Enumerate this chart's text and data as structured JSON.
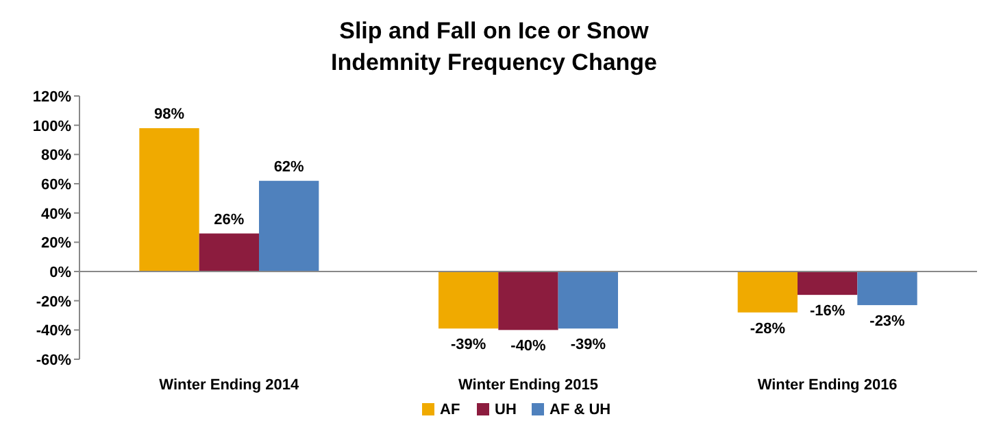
{
  "chart_data": {
    "type": "bar",
    "title": "Slip and Fall on Ice or Snow\nIndemnity Frequency Change",
    "categories": [
      "Winter Ending 2014",
      "Winter Ending 2015",
      "Winter Ending 2016"
    ],
    "series": [
      {
        "name": "AF",
        "color": "#f0aa00",
        "values": [
          98,
          -39,
          -28
        ],
        "value_labels": [
          "98%",
          "-39%",
          "-28%"
        ]
      },
      {
        "name": "UH",
        "color": "#8c1c3e",
        "values": [
          26,
          -40,
          -16
        ],
        "value_labels": [
          "26%",
          "-40%",
          "-16%"
        ]
      },
      {
        "name": "AF & UH",
        "color": "#4f81bd",
        "values": [
          62,
          -39,
          -23
        ],
        "value_labels": [
          "62%",
          "-39%",
          "-23%"
        ]
      }
    ],
    "ylim": [
      -60,
      120
    ],
    "yticks": [
      {
        "value": -60,
        "label": "-60%"
      },
      {
        "value": -40,
        "label": "-40%"
      },
      {
        "value": -20,
        "label": "-20%"
      },
      {
        "value": 0,
        "label": "0%"
      },
      {
        "value": 20,
        "label": "20%"
      },
      {
        "value": 40,
        "label": "40%"
      },
      {
        "value": 60,
        "label": "60%"
      },
      {
        "value": 80,
        "label": "80%"
      },
      {
        "value": 100,
        "label": "100%"
      },
      {
        "value": 120,
        "label": "120%"
      }
    ],
    "legend": "bottom"
  }
}
